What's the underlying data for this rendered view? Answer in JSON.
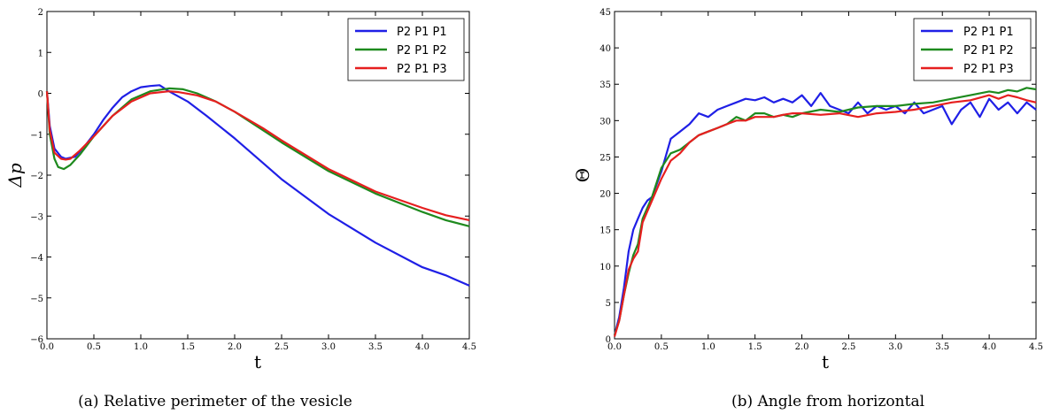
{
  "chart_data": [
    {
      "type": "line",
      "caption": "(a) Relative perimeter of the vesicle",
      "xlabel": "t",
      "ylabel": "Δp",
      "xlim": [
        0.0,
        4.5
      ],
      "ylim": [
        -6,
        2
      ],
      "xticks": [
        0.0,
        0.5,
        1.0,
        1.5,
        2.0,
        2.5,
        3.0,
        3.5,
        4.0,
        4.5
      ],
      "xtick_labels": [
        "0.0",
        "0.5",
        "1.0",
        "1.5",
        "2.0",
        "2.5",
        "3.0",
        "3.5",
        "4.0",
        "4.5"
      ],
      "yticks": [
        -6,
        -5,
        -4,
        -3,
        -2,
        -1,
        0,
        1,
        2
      ],
      "ytick_labels": [
        "−6",
        "−5",
        "−4",
        "−3",
        "−2",
        "−1",
        "0",
        "1",
        "2"
      ],
      "grid": false,
      "legend": "top-right",
      "series": [
        {
          "name": "P2 P1 P1",
          "color": "#1f1fe6",
          "x": [
            0.0,
            0.03,
            0.08,
            0.15,
            0.2,
            0.3,
            0.4,
            0.5,
            0.6,
            0.7,
            0.8,
            0.9,
            1.0,
            1.1,
            1.2,
            1.3,
            1.5,
            1.7,
            2.0,
            2.3,
            2.5,
            3.0,
            3.5,
            4.0,
            4.25,
            4.5
          ],
          "y": [
            0.05,
            -0.8,
            -1.35,
            -1.55,
            -1.6,
            -1.55,
            -1.3,
            -1.0,
            -0.65,
            -0.35,
            -0.1,
            0.05,
            0.15,
            0.18,
            0.2,
            0.05,
            -0.2,
            -0.55,
            -1.1,
            -1.7,
            -2.1,
            -2.95,
            -3.65,
            -4.25,
            -4.45,
            -4.7
          ]
        },
        {
          "name": "P2 P1 P2",
          "color": "#1e8a1e",
          "x": [
            0.0,
            0.03,
            0.08,
            0.12,
            0.18,
            0.25,
            0.35,
            0.5,
            0.7,
            0.9,
            1.1,
            1.3,
            1.45,
            1.6,
            1.8,
            2.0,
            2.3,
            2.5,
            3.0,
            3.5,
            4.0,
            4.25,
            4.5
          ],
          "y": [
            0.05,
            -1.0,
            -1.6,
            -1.8,
            -1.85,
            -1.75,
            -1.5,
            -1.05,
            -0.55,
            -0.15,
            0.05,
            0.12,
            0.1,
            0.0,
            -0.2,
            -0.45,
            -0.9,
            -1.2,
            -1.9,
            -2.45,
            -2.9,
            -3.1,
            -3.25
          ]
        },
        {
          "name": "P2 P1 P3",
          "color": "#e61f1f",
          "x": [
            0.0,
            0.03,
            0.08,
            0.15,
            0.2,
            0.25,
            0.35,
            0.5,
            0.7,
            0.9,
            1.1,
            1.3,
            1.4,
            1.6,
            1.8,
            2.0,
            2.3,
            2.5,
            3.0,
            3.5,
            4.0,
            4.25,
            4.5
          ],
          "y": [
            0.05,
            -0.9,
            -1.45,
            -1.6,
            -1.62,
            -1.6,
            -1.4,
            -1.05,
            -0.55,
            -0.2,
            0.0,
            0.05,
            0.03,
            -0.05,
            -0.2,
            -0.45,
            -0.85,
            -1.15,
            -1.85,
            -2.4,
            -2.8,
            -2.98,
            -3.1
          ]
        }
      ]
    },
    {
      "type": "line",
      "caption": "(b) Angle from horizontal",
      "xlabel": "t",
      "ylabel": "Θ",
      "xlim": [
        0.0,
        4.5
      ],
      "ylim": [
        0,
        45
      ],
      "xticks": [
        0.0,
        0.5,
        1.0,
        1.5,
        2.0,
        2.5,
        3.0,
        3.5,
        4.0,
        4.5
      ],
      "xtick_labels": [
        "0.0",
        "0.5",
        "1.0",
        "1.5",
        "2.0",
        "2.5",
        "3.0",
        "3.5",
        "4.0",
        "4.5"
      ],
      "yticks": [
        0,
        5,
        10,
        15,
        20,
        25,
        30,
        35,
        40,
        45
      ],
      "ytick_labels": [
        "0",
        "5",
        "10",
        "15",
        "20",
        "25",
        "30",
        "35",
        "40",
        "45"
      ],
      "grid": false,
      "legend": "top-right",
      "series": [
        {
          "name": "P2 P1 P1",
          "color": "#1f1fe6",
          "x": [
            0.0,
            0.05,
            0.1,
            0.15,
            0.2,
            0.25,
            0.3,
            0.35,
            0.4,
            0.5,
            0.6,
            0.7,
            0.8,
            0.9,
            1.0,
            1.1,
            1.2,
            1.3,
            1.4,
            1.5,
            1.6,
            1.7,
            1.8,
            1.9,
            2.0,
            2.1,
            2.2,
            2.3,
            2.4,
            2.5,
            2.6,
            2.7,
            2.8,
            2.9,
            3.0,
            3.1,
            3.2,
            3.3,
            3.4,
            3.5,
            3.6,
            3.7,
            3.8,
            3.9,
            4.0,
            4.1,
            4.2,
            4.3,
            4.4,
            4.5
          ],
          "y": [
            0.5,
            3,
            7,
            12,
            15,
            16.5,
            18,
            19,
            19.5,
            23,
            27.5,
            28.5,
            29.5,
            31,
            30.5,
            31.5,
            32,
            32.5,
            33,
            32.8,
            33.2,
            32.5,
            33,
            32.5,
            33.5,
            32,
            33.8,
            32,
            31.5,
            31,
            32.5,
            31,
            32,
            31.5,
            32,
            31,
            32.5,
            31,
            31.5,
            32,
            29.5,
            31.5,
            32.5,
            30.5,
            33,
            31.5,
            32.5,
            31,
            32.5,
            31.5
          ]
        },
        {
          "name": "P2 P1 P2",
          "color": "#1e8a1e",
          "x": [
            0.0,
            0.05,
            0.1,
            0.15,
            0.2,
            0.25,
            0.3,
            0.35,
            0.4,
            0.5,
            0.6,
            0.7,
            0.8,
            0.9,
            1.0,
            1.1,
            1.2,
            1.3,
            1.4,
            1.5,
            1.6,
            1.7,
            1.8,
            1.9,
            2.0,
            2.2,
            2.4,
            2.6,
            2.8,
            3.0,
            3.2,
            3.4,
            3.6,
            3.8,
            4.0,
            4.1,
            4.2,
            4.3,
            4.4,
            4.5
          ],
          "y": [
            0.5,
            2.5,
            6,
            9,
            11.5,
            13,
            16.5,
            18,
            19.5,
            23.5,
            25.5,
            26,
            27,
            28,
            28.5,
            29,
            29.5,
            30.5,
            30,
            31,
            31,
            30.5,
            30.8,
            30.5,
            31,
            31.5,
            31.2,
            31.8,
            32,
            32,
            32.3,
            32.5,
            33,
            33.5,
            34,
            33.8,
            34.2,
            34,
            34.5,
            34.3
          ]
        },
        {
          "name": "P2 P1 P3",
          "color": "#e61f1f",
          "x": [
            0.0,
            0.05,
            0.1,
            0.15,
            0.2,
            0.25,
            0.3,
            0.35,
            0.4,
            0.5,
            0.6,
            0.7,
            0.8,
            0.9,
            1.0,
            1.1,
            1.2,
            1.3,
            1.4,
            1.5,
            1.6,
            1.7,
            1.8,
            1.9,
            2.0,
            2.2,
            2.4,
            2.6,
            2.8,
            3.0,
            3.2,
            3.4,
            3.6,
            3.8,
            4.0,
            4.1,
            4.2,
            4.3,
            4.4,
            4.5
          ],
          "y": [
            0.3,
            2.5,
            6,
            9.5,
            11,
            12,
            16,
            17.5,
            19,
            22,
            24.5,
            25.5,
            27,
            28,
            28.5,
            29,
            29.5,
            30,
            30,
            30.5,
            30.5,
            30.5,
            30.8,
            31,
            31,
            30.8,
            31,
            30.5,
            31,
            31.2,
            31.5,
            32,
            32.5,
            32.8,
            33.5,
            33,
            33.5,
            33.2,
            32.8,
            32.5
          ]
        }
      ]
    }
  ]
}
